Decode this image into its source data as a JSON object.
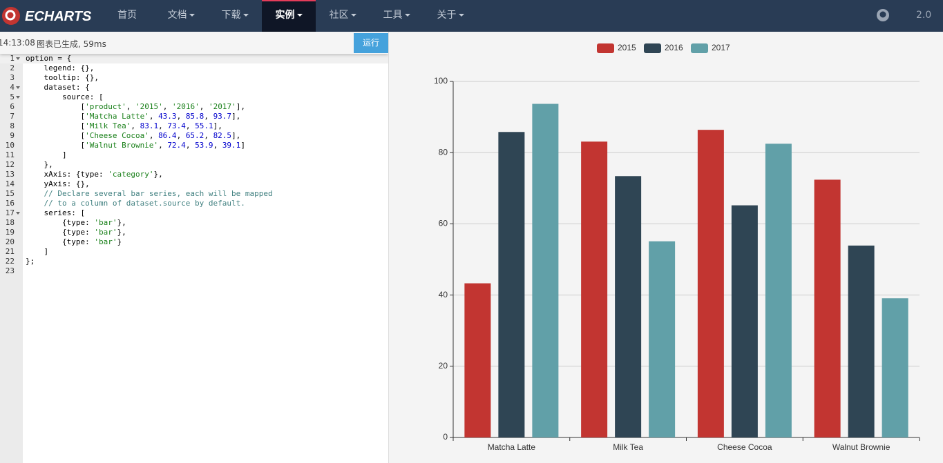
{
  "nav": {
    "logo": "ECHARTS",
    "menu": [
      "首页",
      "文档",
      "下载",
      "实例",
      "社区",
      "工具",
      "关于"
    ],
    "version": "2.0"
  },
  "editor": {
    "status_time": "14:13:08",
    "status": "图表已生成, 59ms",
    "run_button": "运行",
    "line_numbers": [
      1,
      2,
      3,
      4,
      5,
      6,
      7,
      8,
      9,
      10,
      11,
      12,
      13,
      14,
      15,
      16,
      17,
      18,
      19,
      20,
      21,
      22,
      23
    ],
    "lines": [
      "option = {",
      "    legend: {},",
      "    tooltip: {},",
      "    dataset: {",
      "        source: [",
      "            ['product', '2015', '2016', '2017'],",
      "            ['Matcha Latte', 43.3, 85.8, 93.7],",
      "            ['Milk Tea', 83.1, 73.4, 55.1],",
      "            ['Cheese Cocoa', 86.4, 65.2, 82.5],",
      "            ['Walnut Brownie', 72.4, 53.9, 39.1]",
      "        ]",
      "    },",
      "    xAxis: {type: 'category'},",
      "    yAxis: {},",
      "    // Declare several bar series, each will be mapped",
      "    // to a column of dataset.source by default.",
      "    series: [",
      "        {type: 'bar'},",
      "        {type: 'bar'},",
      "        {type: 'bar'}",
      "    ]",
      "};"
    ]
  },
  "chart_data": {
    "type": "bar",
    "categories": [
      "Matcha Latte",
      "Milk Tea",
      "Cheese Cocoa",
      "Walnut Brownie"
    ],
    "series": [
      {
        "name": "2015",
        "color": "#c23531",
        "values": [
          43.3,
          83.1,
          86.4,
          72.4
        ]
      },
      {
        "name": "2016",
        "color": "#2f4554",
        "values": [
          85.8,
          73.4,
          65.2,
          53.9
        ]
      },
      {
        "name": "2017",
        "color": "#61a0a8",
        "values": [
          93.7,
          55.1,
          82.5,
          39.1
        ]
      }
    ],
    "ylim": [
      0,
      100
    ],
    "yticks": [
      0,
      20,
      40,
      60,
      80,
      100
    ],
    "grid": true,
    "legend": "top"
  }
}
